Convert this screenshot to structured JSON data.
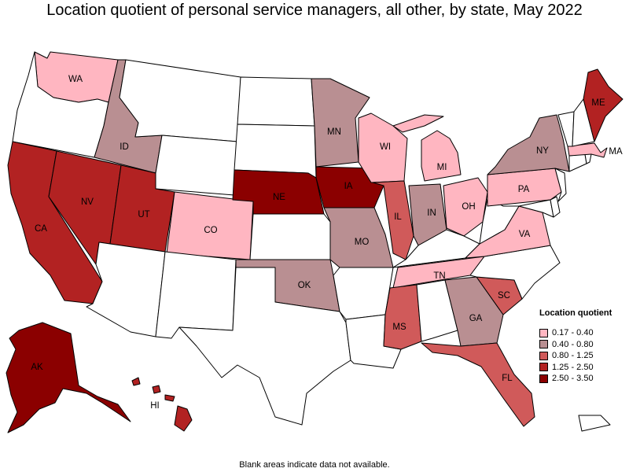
{
  "title": "Location quotient of personal service managers, all other, by state, May 2022",
  "note": "Blank areas indicate data not available.",
  "colors": {
    "none": "#ffffff",
    "c1": "#ffb6c1",
    "c2": "#b98f92",
    "c3": "#d05a5a",
    "c4": "#b22222",
    "c5": "#8b0000"
  },
  "legend": {
    "title": "Location quotient",
    "items": [
      {
        "label": "0.17 - 0.40",
        "class": "c1"
      },
      {
        "label": "0.40 - 0.80",
        "class": "c2"
      },
      {
        "label": "0.80 - 1.25",
        "class": "c3"
      },
      {
        "label": "1.25 - 2.50",
        "class": "c4"
      },
      {
        "label": "2.50 - 3.50",
        "class": "c5"
      }
    ]
  },
  "states": {
    "WA": {
      "class": "c1",
      "label": "WA"
    },
    "ID": {
      "class": "c2",
      "label": "ID"
    },
    "CA": {
      "class": "c4",
      "label": "CA"
    },
    "NV": {
      "class": "c4",
      "label": "NV"
    },
    "UT": {
      "class": "c4",
      "label": "UT"
    },
    "CO": {
      "class": "c1",
      "label": "CO"
    },
    "NE": {
      "class": "c5",
      "label": "NE"
    },
    "MN": {
      "class": "c2",
      "label": "MN"
    },
    "IA": {
      "class": "c5",
      "label": "IA"
    },
    "MO": {
      "class": "c2",
      "label": "MO"
    },
    "OK": {
      "class": "c2",
      "label": "OK"
    },
    "WI": {
      "class": "c1",
      "label": "WI"
    },
    "IL": {
      "class": "c3",
      "label": "IL"
    },
    "MI": {
      "class": "c1",
      "label": "MI"
    },
    "IN": {
      "class": "c2",
      "label": "IN"
    },
    "OH": {
      "class": "c1",
      "label": "OH"
    },
    "TN": {
      "class": "c1",
      "label": "TN"
    },
    "MS": {
      "class": "c3",
      "label": "MS"
    },
    "GA": {
      "class": "c2",
      "label": "GA"
    },
    "FL": {
      "class": "c3",
      "label": "FL"
    },
    "SC": {
      "class": "c3",
      "label": "SC"
    },
    "VA": {
      "class": "c1",
      "label": "VA"
    },
    "PA": {
      "class": "c1",
      "label": "PA"
    },
    "NY": {
      "class": "c2",
      "label": "NY"
    },
    "MA": {
      "class": "c1",
      "label": "MA"
    },
    "ME": {
      "class": "c4",
      "label": "ME"
    },
    "AK": {
      "class": "c5",
      "label": "AK"
    },
    "HI": {
      "class": "c4",
      "label": "HI"
    },
    "OR": {
      "class": "none"
    },
    "MT": {
      "class": "none"
    },
    "WY": {
      "class": "none"
    },
    "ND": {
      "class": "none"
    },
    "SD": {
      "class": "none"
    },
    "KS": {
      "class": "none"
    },
    "AZ": {
      "class": "none"
    },
    "NM": {
      "class": "none"
    },
    "TX": {
      "class": "none"
    },
    "AR": {
      "class": "none"
    },
    "LA": {
      "class": "none"
    },
    "AL": {
      "class": "none"
    },
    "KY": {
      "class": "none"
    },
    "WV": {
      "class": "none"
    },
    "NC": {
      "class": "none"
    },
    "MD": {
      "class": "none"
    },
    "DE": {
      "class": "none"
    },
    "NJ": {
      "class": "none"
    },
    "CT": {
      "class": "none"
    },
    "RI": {
      "class": "none"
    },
    "VT": {
      "class": "none"
    },
    "NH": {
      "class": "none"
    },
    "PR": {
      "class": "none"
    }
  }
}
